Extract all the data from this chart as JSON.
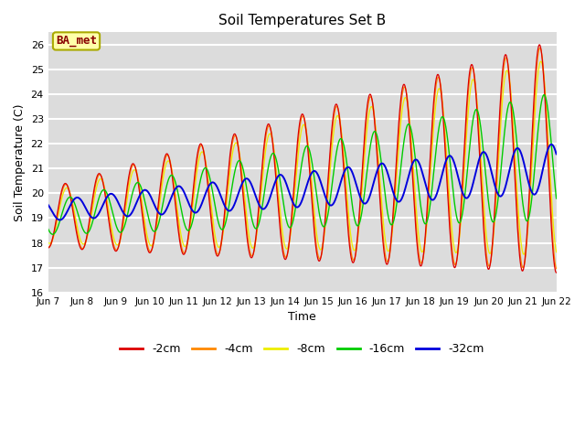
{
  "title": "Soil Temperatures Set B",
  "xlabel": "Time",
  "ylabel": "Soil Temperature (C)",
  "ylim": [
    16.0,
    26.5
  ],
  "yticks": [
    16.0,
    17.0,
    18.0,
    19.0,
    20.0,
    21.0,
    22.0,
    23.0,
    24.0,
    25.0,
    26.0
  ],
  "colors": {
    "-2cm": "#dd0000",
    "-4cm": "#ff8800",
    "-8cm": "#eeee00",
    "-16cm": "#00cc00",
    "-32cm": "#0000dd"
  },
  "legend_label": "BA_met",
  "bg_color": "#dcdcdc",
  "x_labels": [
    "Jun 7",
    "Jun 8",
    "Jun 9",
    "Jun 10",
    "Jun 11",
    "Jun 12",
    "Jun 13",
    "Jun 14",
    "Jun 15",
    "Jun 16",
    "Jun 17",
    "Jun 18",
    "Jun 19",
    "Jun 20",
    "Jun 21",
    "Jun 22"
  ],
  "n_points": 1440
}
